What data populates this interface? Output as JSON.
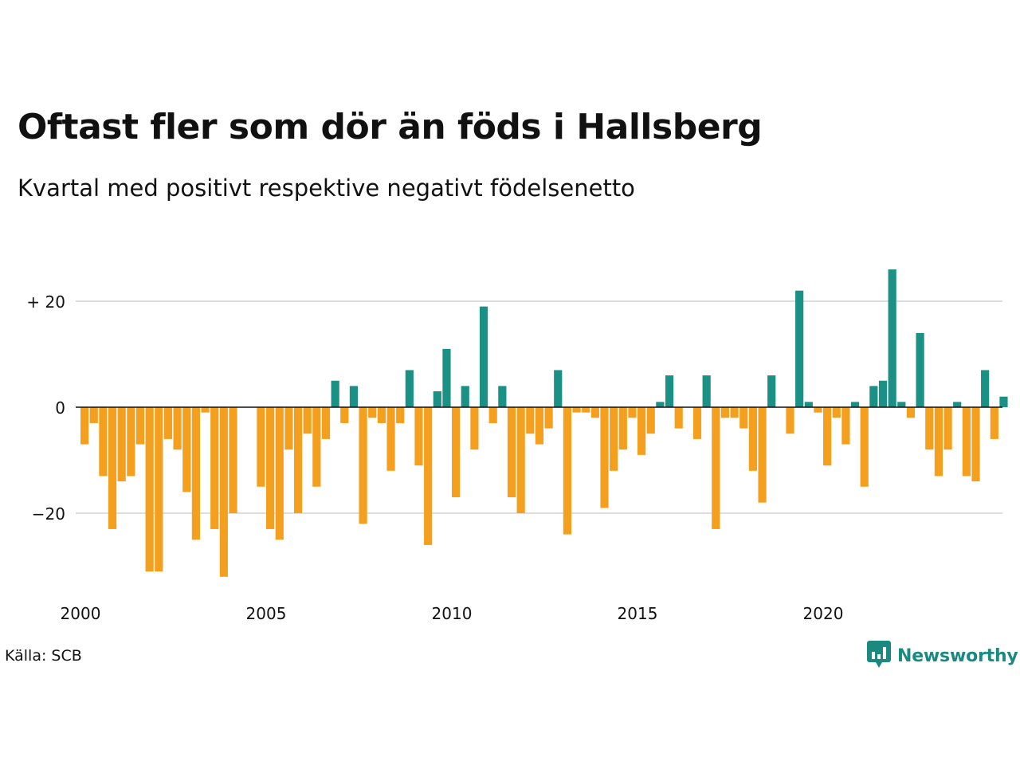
{
  "chart_data": {
    "type": "bar",
    "title": "Oftast fler som dör än föds i Hallsberg",
    "subtitle": "Kvartal med positivt respektive negativt födelsenetto",
    "xlabel": "",
    "ylabel": "",
    "ylim": [
      -35,
      30
    ],
    "y_ticks": [
      {
        "value": 20,
        "label": "+ 20"
      },
      {
        "value": 0,
        "label": "0"
      },
      {
        "value": -20,
        "label": "−20"
      }
    ],
    "x_ticks": [
      "2000",
      "2005",
      "2010",
      "2015",
      "2020"
    ],
    "start_quarter": "2000 Q1",
    "colors": {
      "positive": "#1a9184",
      "negative": "#f59f1e",
      "grid": "#dddddd",
      "zero_line": "#111111"
    },
    "values": [
      -7,
      -3,
      -13,
      -23,
      -14,
      -13,
      -7,
      -31,
      -31,
      -6,
      -8,
      -16,
      -25,
      -1,
      -23,
      -32,
      -20,
      0,
      0,
      -15,
      -23,
      -25,
      -8,
      -20,
      -5,
      -15,
      -6,
      5,
      -3,
      4,
      -22,
      -2,
      -3,
      -12,
      -3,
      7,
      -11,
      -26,
      3,
      11,
      -17,
      4,
      -8,
      19,
      -3,
      4,
      -17,
      -20,
      -5,
      -7,
      -4,
      7,
      -24,
      -1,
      -1,
      -2,
      -19,
      -12,
      -8,
      -2,
      -9,
      -5,
      1,
      6,
      -4,
      0,
      -6,
      6,
      -23,
      -2,
      -2,
      -4,
      -12,
      -18,
      6,
      0,
      -5,
      22,
      1,
      -1,
      -11,
      -2,
      -7,
      1,
      -15,
      4,
      5,
      26,
      1,
      -2,
      14,
      -8,
      -13,
      -8,
      1,
      -13,
      -14,
      7,
      -6,
      2
    ]
  },
  "footer": {
    "source": "Källa: SCB",
    "brand": "Newsworthy",
    "brand_color": "#1a8a80",
    "brand_icon": "bar-chart-speech-bubble-icon"
  }
}
